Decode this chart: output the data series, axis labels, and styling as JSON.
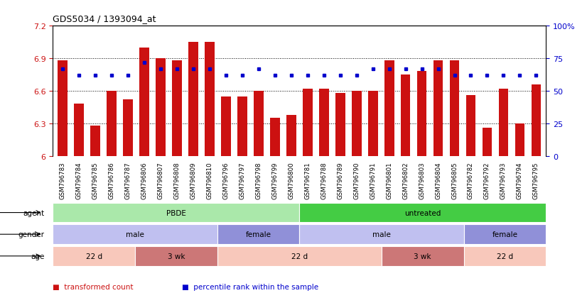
{
  "title": "GDS5034 / 1393094_at",
  "samples": [
    "GSM796783",
    "GSM796784",
    "GSM796785",
    "GSM796786",
    "GSM796787",
    "GSM796806",
    "GSM796807",
    "GSM796808",
    "GSM796809",
    "GSM796810",
    "GSM796796",
    "GSM796797",
    "GSM796798",
    "GSM796799",
    "GSM796800",
    "GSM796781",
    "GSM796788",
    "GSM796789",
    "GSM796790",
    "GSM796791",
    "GSM796801",
    "GSM796802",
    "GSM796803",
    "GSM796804",
    "GSM796805",
    "GSM796782",
    "GSM796792",
    "GSM796793",
    "GSM796794",
    "GSM796795"
  ],
  "bar_values": [
    6.88,
    6.48,
    6.28,
    6.6,
    6.52,
    7.0,
    6.9,
    6.88,
    7.05,
    7.05,
    6.55,
    6.55,
    6.6,
    6.35,
    6.38,
    6.62,
    6.62,
    6.58,
    6.6,
    6.6,
    6.88,
    6.75,
    6.78,
    6.88,
    6.88,
    6.56,
    6.26,
    6.62,
    6.3,
    6.66
  ],
  "percentile_values": [
    67,
    62,
    62,
    62,
    62,
    72,
    67,
    67,
    67,
    67,
    62,
    62,
    67,
    62,
    62,
    62,
    62,
    62,
    62,
    67,
    67,
    67,
    67,
    67,
    62,
    62,
    62,
    62,
    62,
    62
  ],
  "bar_color": "#cc1111",
  "dot_color": "#0000cc",
  "ylim_left": [
    6.0,
    7.2
  ],
  "ylim_right": [
    0,
    100
  ],
  "yticks_left": [
    6.0,
    6.3,
    6.6,
    6.9,
    7.2
  ],
  "yticks_right": [
    0,
    25,
    50,
    75,
    100
  ],
  "ytick_labels_left": [
    "6",
    "6.3",
    "6.6",
    "6.9",
    "7.2"
  ],
  "ytick_labels_right": [
    "0",
    "25",
    "50",
    "75",
    "100%"
  ],
  "hlines": [
    6.3,
    6.6,
    6.9
  ],
  "agent_groups": [
    {
      "label": "PBDE",
      "start": 0,
      "end": 15,
      "color": "#aae8aa"
    },
    {
      "label": "untreated",
      "start": 15,
      "end": 30,
      "color": "#44cc44"
    }
  ],
  "gender_groups": [
    {
      "label": "male",
      "start": 0,
      "end": 10,
      "color": "#c0c0f0"
    },
    {
      "label": "female",
      "start": 10,
      "end": 15,
      "color": "#9090d8"
    },
    {
      "label": "male",
      "start": 15,
      "end": 25,
      "color": "#c0c0f0"
    },
    {
      "label": "female",
      "start": 25,
      "end": 30,
      "color": "#9090d8"
    }
  ],
  "age_groups": [
    {
      "label": "22 d",
      "start": 0,
      "end": 5,
      "color": "#f8c8bb"
    },
    {
      "label": "3 wk",
      "start": 5,
      "end": 10,
      "color": "#cc7777"
    },
    {
      "label": "22 d",
      "start": 10,
      "end": 20,
      "color": "#f8c8bb"
    },
    {
      "label": "3 wk",
      "start": 20,
      "end": 25,
      "color": "#cc7777"
    },
    {
      "label": "22 d",
      "start": 25,
      "end": 30,
      "color": "#f8c8bb"
    }
  ],
  "legend_items": [
    {
      "label": "transformed count",
      "color": "#cc1111"
    },
    {
      "label": "percentile rank within the sample",
      "color": "#0000cc"
    }
  ],
  "row_labels": [
    "agent",
    "gender",
    "age"
  ],
  "background_color": "#ffffff"
}
